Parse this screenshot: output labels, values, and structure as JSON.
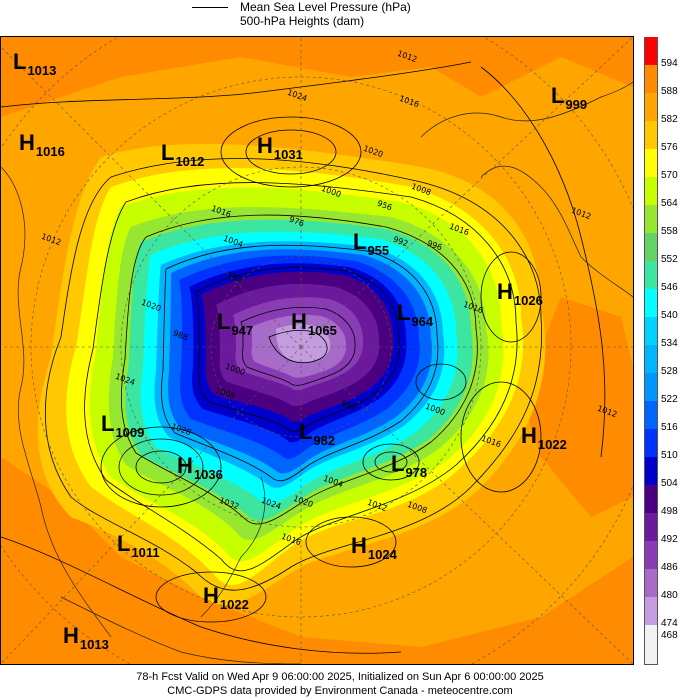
{
  "header": {
    "line1": "Mean Sea Level Pressure (hPa)",
    "line2": "500-hPa Heights (dam)"
  },
  "systems": [
    {
      "type": "L",
      "value": "1013"
    },
    {
      "type": "H",
      "value": "1016"
    },
    {
      "type": "L",
      "value": "1012"
    },
    {
      "type": "H",
      "value": "1031"
    },
    {
      "type": "L",
      "value": "999"
    },
    {
      "type": "L",
      "value": "955"
    },
    {
      "type": "H",
      "value": "1026"
    },
    {
      "type": "L",
      "value": "947"
    },
    {
      "type": "H",
      "value": "1065"
    },
    {
      "type": "L",
      "value": "964"
    },
    {
      "type": "L",
      "value": "1009"
    },
    {
      "type": "L",
      "value": "982"
    },
    {
      "type": "H",
      "value": "1022"
    },
    {
      "type": "H",
      "value": "1036"
    },
    {
      "type": "L",
      "value": "978"
    },
    {
      "type": "L",
      "value": "1011"
    },
    {
      "type": "H",
      "value": "1024"
    },
    {
      "type": "H",
      "value": "1022"
    },
    {
      "type": "H",
      "value": "1013"
    }
  ],
  "contour_labels": [
    "1012",
    "1024",
    "1016",
    "1020",
    "1012",
    "1016",
    "1000",
    "1008",
    "1016",
    "1004",
    "976",
    "956",
    "992",
    "996",
    "1012",
    "1020",
    "960",
    "988",
    "1016",
    "1024",
    "1008",
    "1000",
    "1028",
    "1000",
    "992",
    "1004",
    "1012",
    "1008",
    "1016",
    "1012",
    "1032",
    "1016",
    "1024",
    "1020"
  ],
  "color_scale": {
    "levels": [
      "594",
      "588",
      "582",
      "576",
      "570",
      "564",
      "558",
      "552",
      "546",
      "540",
      "534",
      "528",
      "522",
      "516",
      "510",
      "504",
      "498",
      "492",
      "486",
      "480",
      "474",
      "468"
    ],
    "colors": [
      "#ff0000",
      "#ff8c00",
      "#ffa500",
      "#ffc800",
      "#ffff00",
      "#c8ff00",
      "#96e632",
      "#64d264",
      "#3ce6a0",
      "#00ffff",
      "#00d2ff",
      "#00b4ff",
      "#0096ff",
      "#0064ff",
      "#0032ff",
      "#0000cd",
      "#4b0082",
      "#6a1a9a",
      "#8a3cb5",
      "#a66cc8",
      "#c49de0",
      "#f2f2f2"
    ]
  },
  "footer": {
    "line1": "78-h Fcst Valid on Wed Apr  9 06:00:00 2025, Initialized on Sun Apr  6 00:00:00 2025",
    "line2": "CMC-GDPS data provided by Environment Canada - meteocentre.com"
  }
}
